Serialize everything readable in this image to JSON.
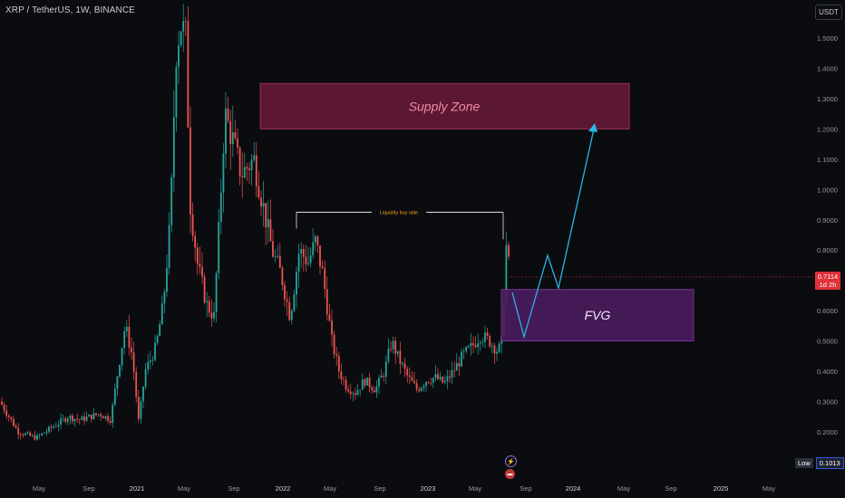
{
  "header": {
    "title": "XRP / TetherUS, 1W, BINANCE",
    "currency_button": "USDT"
  },
  "price_tag": {
    "price": "0.7114",
    "countdown": "1d 2h"
  },
  "low_tag": {
    "label": "Low",
    "value": "0.1013"
  },
  "annotations": {
    "supply_zone": "Supply Zone",
    "fvg": "FVG",
    "liquidity": "Liquidity buy side"
  },
  "colors": {
    "background": "#0b0c10",
    "up_candle": "#26a69a",
    "down_candle": "#ef5350",
    "supply_zone_fill": "#6b1a38",
    "fvg_fill": "#4a1c5e",
    "projection_line": "#29b6e8"
  },
  "icons": [
    "lightning-icon",
    "flag-icon"
  ],
  "chart_data": {
    "type": "candlestick",
    "y_axis": {
      "ticks": [
        "1.5000",
        "1.4000",
        "1.3000",
        "1.2000",
        "1.1000",
        "1.0000",
        "0.9000",
        "0.8000",
        "0.7000",
        "0.6000",
        "0.5000",
        "0.4000",
        "0.3000",
        "0.2000"
      ]
    },
    "x_axis": {
      "ticks": [
        "May",
        "Sep",
        "2021",
        "May",
        "Sep",
        "2022",
        "May",
        "Sep",
        "2023",
        "May",
        "Sep",
        "2024",
        "May",
        "Sep",
        "2025",
        "May"
      ]
    },
    "supply_zone": {
      "low": 1.2,
      "high": 1.35
    },
    "fvg_zone": {
      "low": 0.5,
      "high": 0.67
    },
    "liquidity_level": 0.925,
    "last_price": 0.7114,
    "low": 0.1013
  }
}
